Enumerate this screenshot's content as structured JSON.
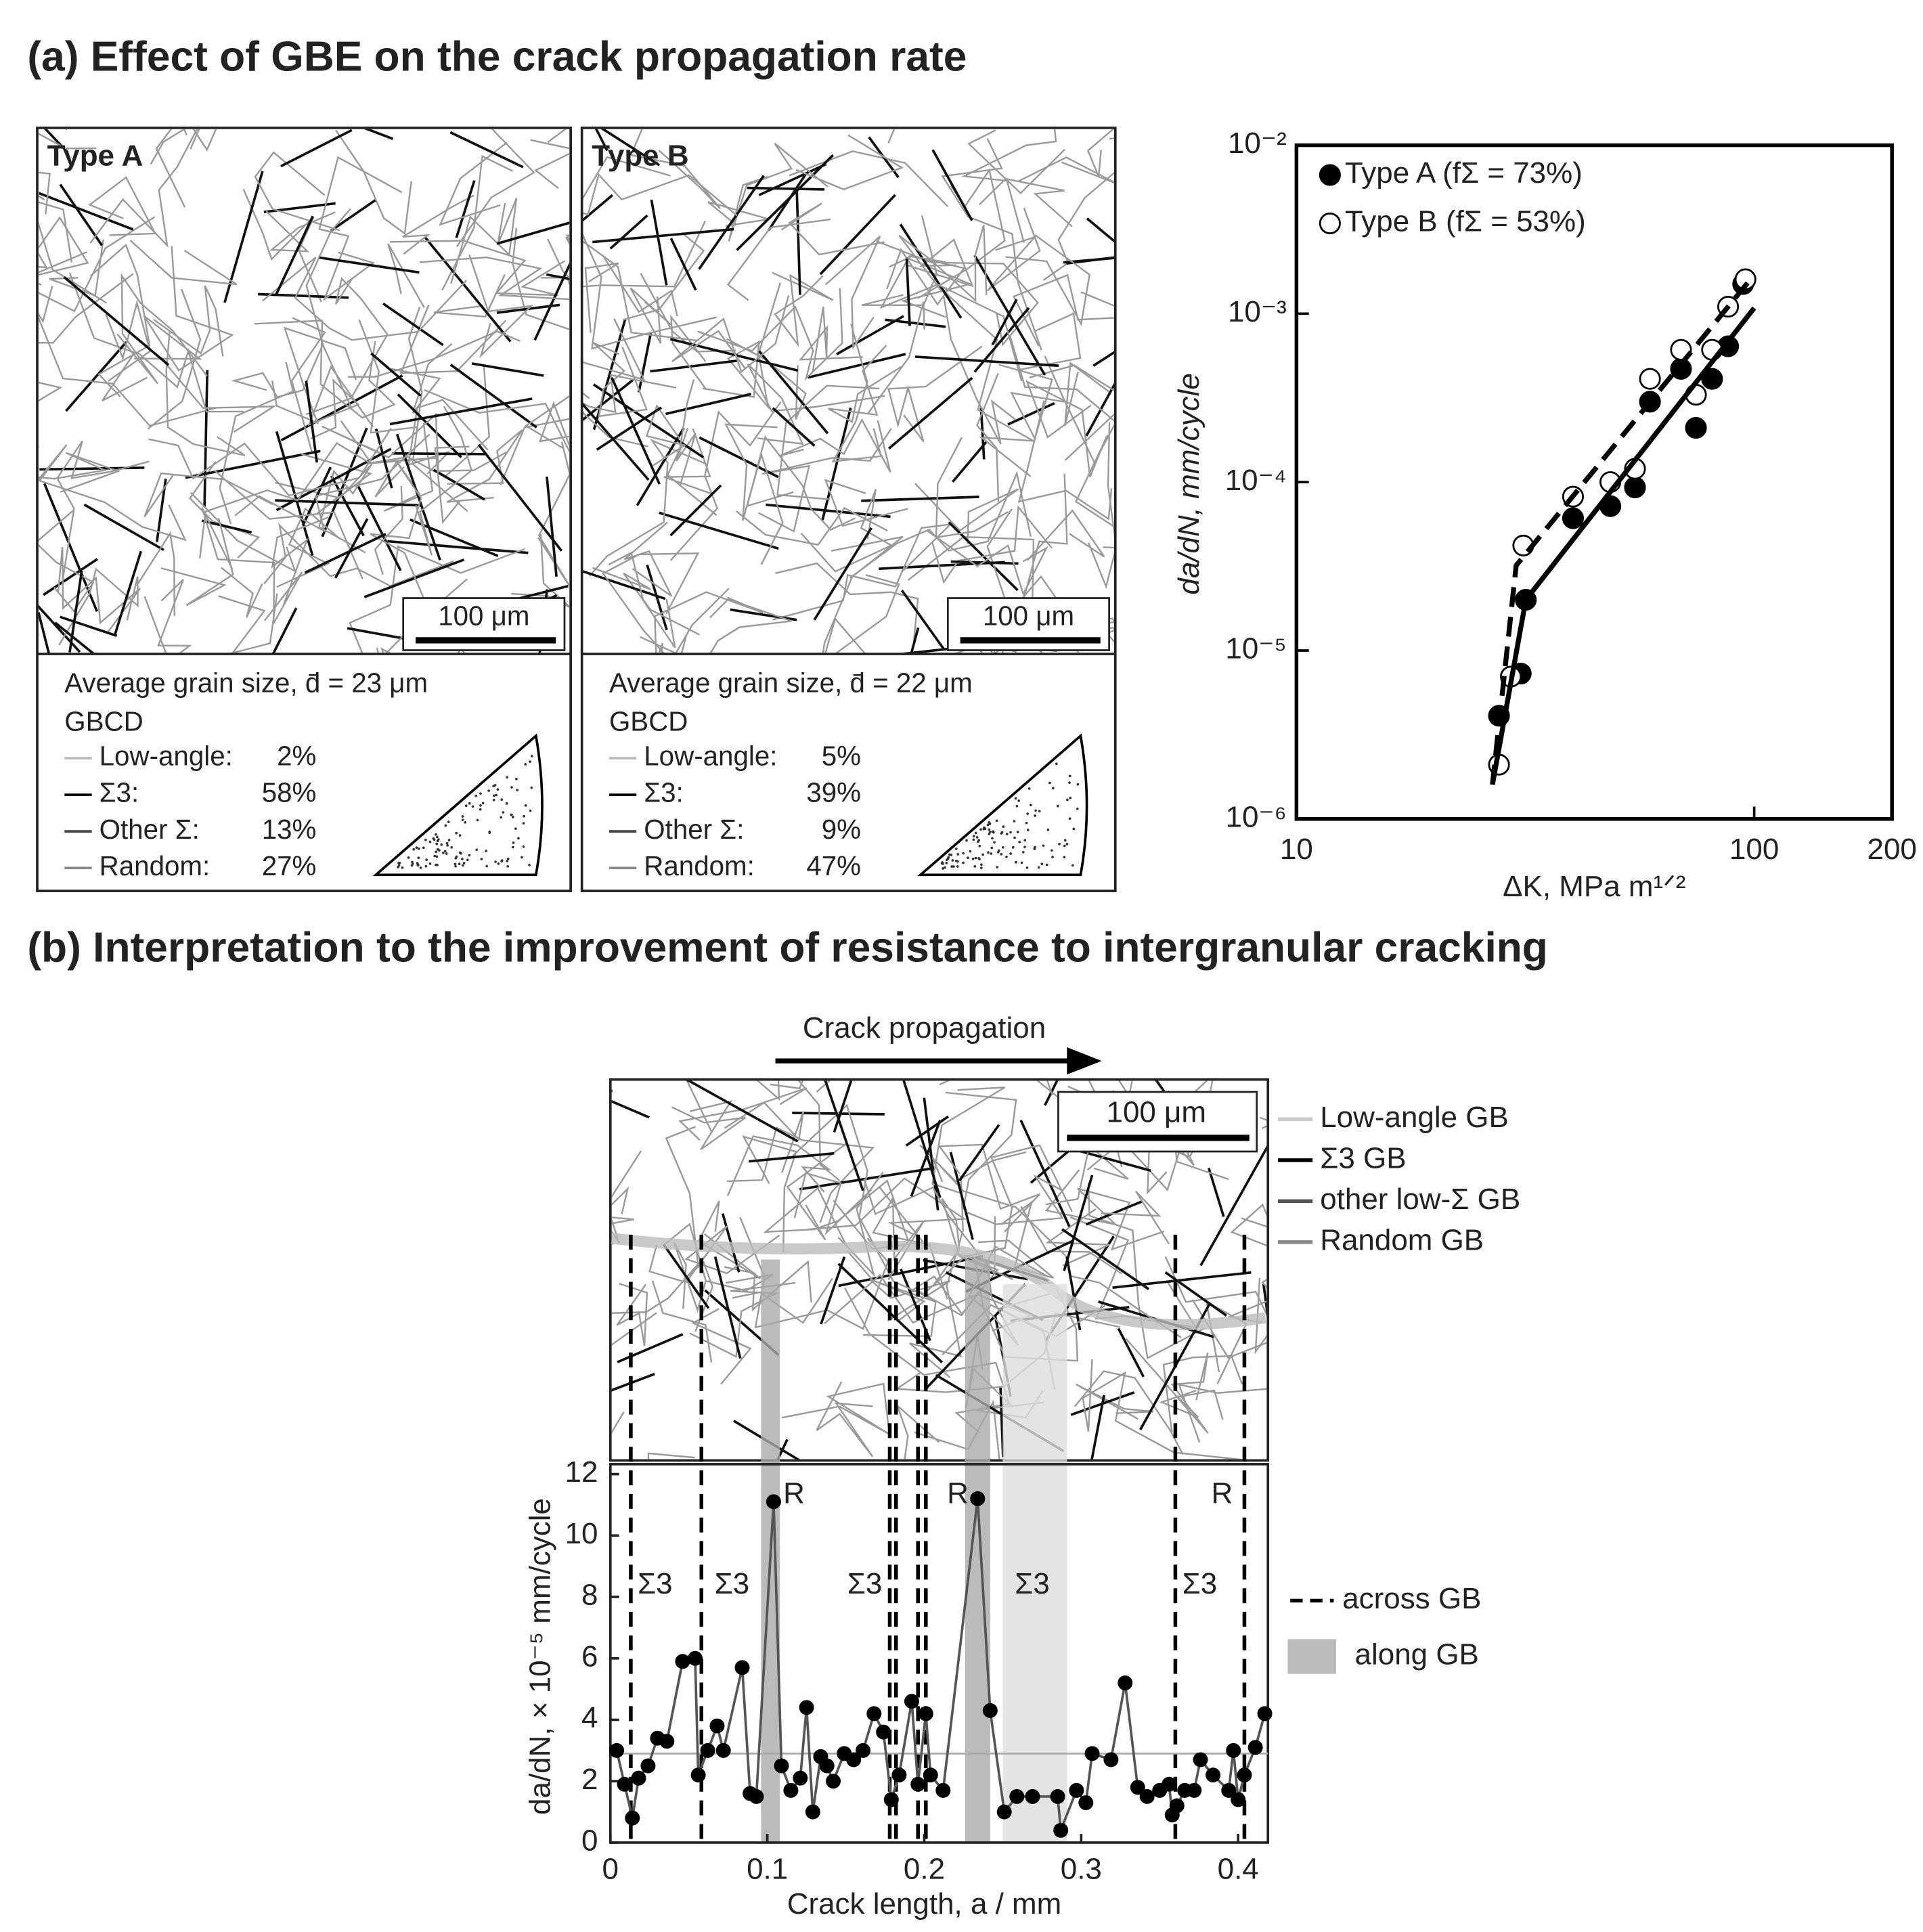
{
  "figure": {
    "title_a": "(a) Effect of GBE on the crack propagation rate",
    "title_b": "(b) Interpretation to the improvement of resistance to intergranular cracking",
    "panels": [
      {
        "label": "Type A",
        "scale": "100 μm",
        "grain_size": "Average grain size, d̄ = 23 μm",
        "gbcd": "GBCD",
        "rows": [
          [
            "Low-angle:",
            "2%"
          ],
          [
            "Σ3:",
            "58%"
          ],
          [
            "Other Σ:",
            "13%"
          ],
          [
            "Random:",
            "27%"
          ]
        ]
      },
      {
        "label": "Type B",
        "scale": "100 μm",
        "grain_size": "Average grain size, d̄ = 22 μm",
        "gbcd": "GBCD",
        "rows": [
          [
            "Low-angle:",
            "5%"
          ],
          [
            "Σ3:",
            "39%"
          ],
          [
            "Other Σ:",
            "9%"
          ],
          [
            "Random:",
            "47%"
          ]
        ]
      }
    ],
    "micrograph_b": {
      "arrow": "Crack propagation",
      "scale": "100 μm",
      "legend": [
        "Low-angle GB",
        "Σ3 GB",
        "other low-Σ GB",
        "Random GB"
      ]
    }
  },
  "chart_data": [
    {
      "type": "scatter",
      "xlabel": "ΔK, MPa m¹ᐟ²",
      "ylabel": "da/dN, mm/cycle",
      "log_x": true,
      "log_y": true,
      "xlim": [
        10,
        200
      ],
      "ylim": [
        1e-06,
        0.01
      ],
      "xticks": [
        10,
        100,
        200
      ],
      "yticks": [
        {
          "value": 1e-06,
          "label": "10⁻⁶"
        },
        {
          "value": 1e-05,
          "label": "10⁻⁵"
        },
        {
          "value": 0.0001,
          "label": "10⁻⁴"
        },
        {
          "value": 0.001,
          "label": "10⁻³"
        },
        {
          "value": 0.01,
          "label": "10⁻²"
        }
      ],
      "legend": "upper left",
      "series": [
        {
          "name": "Type A (fΣ = 73%)",
          "marker": "filled",
          "color": "#000000",
          "x": [
            27.7,
            30.9,
            31.7,
            40.2,
            48.5,
            54.9,
            59.2,
            69.2,
            74.6,
            80.9,
            87.7,
            94.6
          ],
          "values": [
            4.1e-06,
            7.3e-06,
            2e-05,
            6.1e-05,
            7.2e-05,
            9.3e-05,
            0.0003,
            0.00047,
            0.00021,
            0.00041,
            0.00064,
            0.0015
          ]
        },
        {
          "name": "Type B (fΣ = 53%)",
          "marker": "open",
          "color": "#000000",
          "x": [
            27.7,
            29.4,
            31.3,
            40.2,
            48.5,
            54.9,
            59.2,
            69.2,
            74.6,
            80.9,
            87.7,
            95.7
          ],
          "values": [
            2.1e-06,
            7e-06,
            4.2e-05,
            8.2e-05,
            0.0001,
            0.00012,
            0.00041,
            0.00061,
            0.00033,
            0.00061,
            0.0011,
            0.0016
          ]
        },
        {
          "style": "solid",
          "color": "#000000",
          "x": [
            26.8,
            31.7,
            100
          ],
          "values": [
            1.6e-06,
            2e-05,
            0.00108
          ]
        },
        {
          "style": "dashed",
          "color": "#000000",
          "x": [
            26.8,
            30.2,
            100
          ],
          "values": [
            1.6e-06,
            3.2e-05,
            0.0017
          ]
        }
      ]
    },
    {
      "type": "line",
      "xlabel": "Crack length, a / mm",
      "ylabel": "da/dN, × 10⁻⁵ mm/cycle",
      "xlim": [
        0,
        0.419
      ],
      "ylim": [
        0,
        12
      ],
      "xticks": [
        0,
        0.1,
        0.2,
        0.3,
        0.4
      ],
      "yticks": [
        0,
        2,
        4,
        6,
        8,
        10,
        12
      ],
      "color": "#555555",
      "marker_color": "#000000",
      "x": [
        0.004,
        0.009,
        0.014,
        0.018,
        0.024,
        0.03,
        0.036,
        0.046,
        0.054,
        0.056,
        0.062,
        0.068,
        0.072,
        0.084,
        0.089,
        0.093,
        0.104,
        0.109,
        0.115,
        0.121,
        0.125,
        0.129,
        0.134,
        0.138,
        0.142,
        0.149,
        0.155,
        0.161,
        0.168,
        0.174,
        0.179,
        0.184,
        0.192,
        0.196,
        0.201,
        0.204,
        0.212,
        0.234,
        0.242,
        0.251,
        0.259,
        0.269,
        0.285,
        0.287,
        0.297,
        0.303,
        0.307,
        0.319,
        0.328,
        0.336,
        0.342,
        0.35,
        0.356,
        0.358,
        0.361,
        0.366,
        0.372,
        0.376,
        0.384,
        0.394,
        0.397,
        0.4,
        0.404,
        0.411,
        0.417
      ],
      "values": [
        3.0,
        1.9,
        0.8,
        2.1,
        2.5,
        3.4,
        3.3,
        5.9,
        6.0,
        2.2,
        3.0,
        3.8,
        3.0,
        5.7,
        1.6,
        1.5,
        11.1,
        2.5,
        1.7,
        2.1,
        4.4,
        1.0,
        2.8,
        2.5,
        2.0,
        2.9,
        2.7,
        3.0,
        4.2,
        3.6,
        1.4,
        2.2,
        4.6,
        1.9,
        4.2,
        2.2,
        1.7,
        11.2,
        4.3,
        1.0,
        1.5,
        1.5,
        1.5,
        0.4,
        1.7,
        1.3,
        2.9,
        2.7,
        5.2,
        1.8,
        1.5,
        1.7,
        1.9,
        0.9,
        1.2,
        1.7,
        1.7,
        2.7,
        2.2,
        1.7,
        3.0,
        1.4,
        2.2,
        3.1,
        4.2
      ],
      "mean_line": 2.9,
      "across_gb": [
        0.013,
        0.058,
        0.178,
        0.182,
        0.196,
        0.201,
        0.36,
        0.404
      ],
      "along_gb": [
        [
          0.096,
          0.108
        ],
        [
          0.226,
          0.242
        ],
        [
          0.25,
          0.291
        ]
      ],
      "legend": [
        "across GB",
        "along GB"
      ],
      "annotations": [
        "Σ3",
        "Σ3",
        "Σ3",
        "Σ3",
        "Σ3",
        "R",
        "R",
        "R"
      ]
    }
  ]
}
